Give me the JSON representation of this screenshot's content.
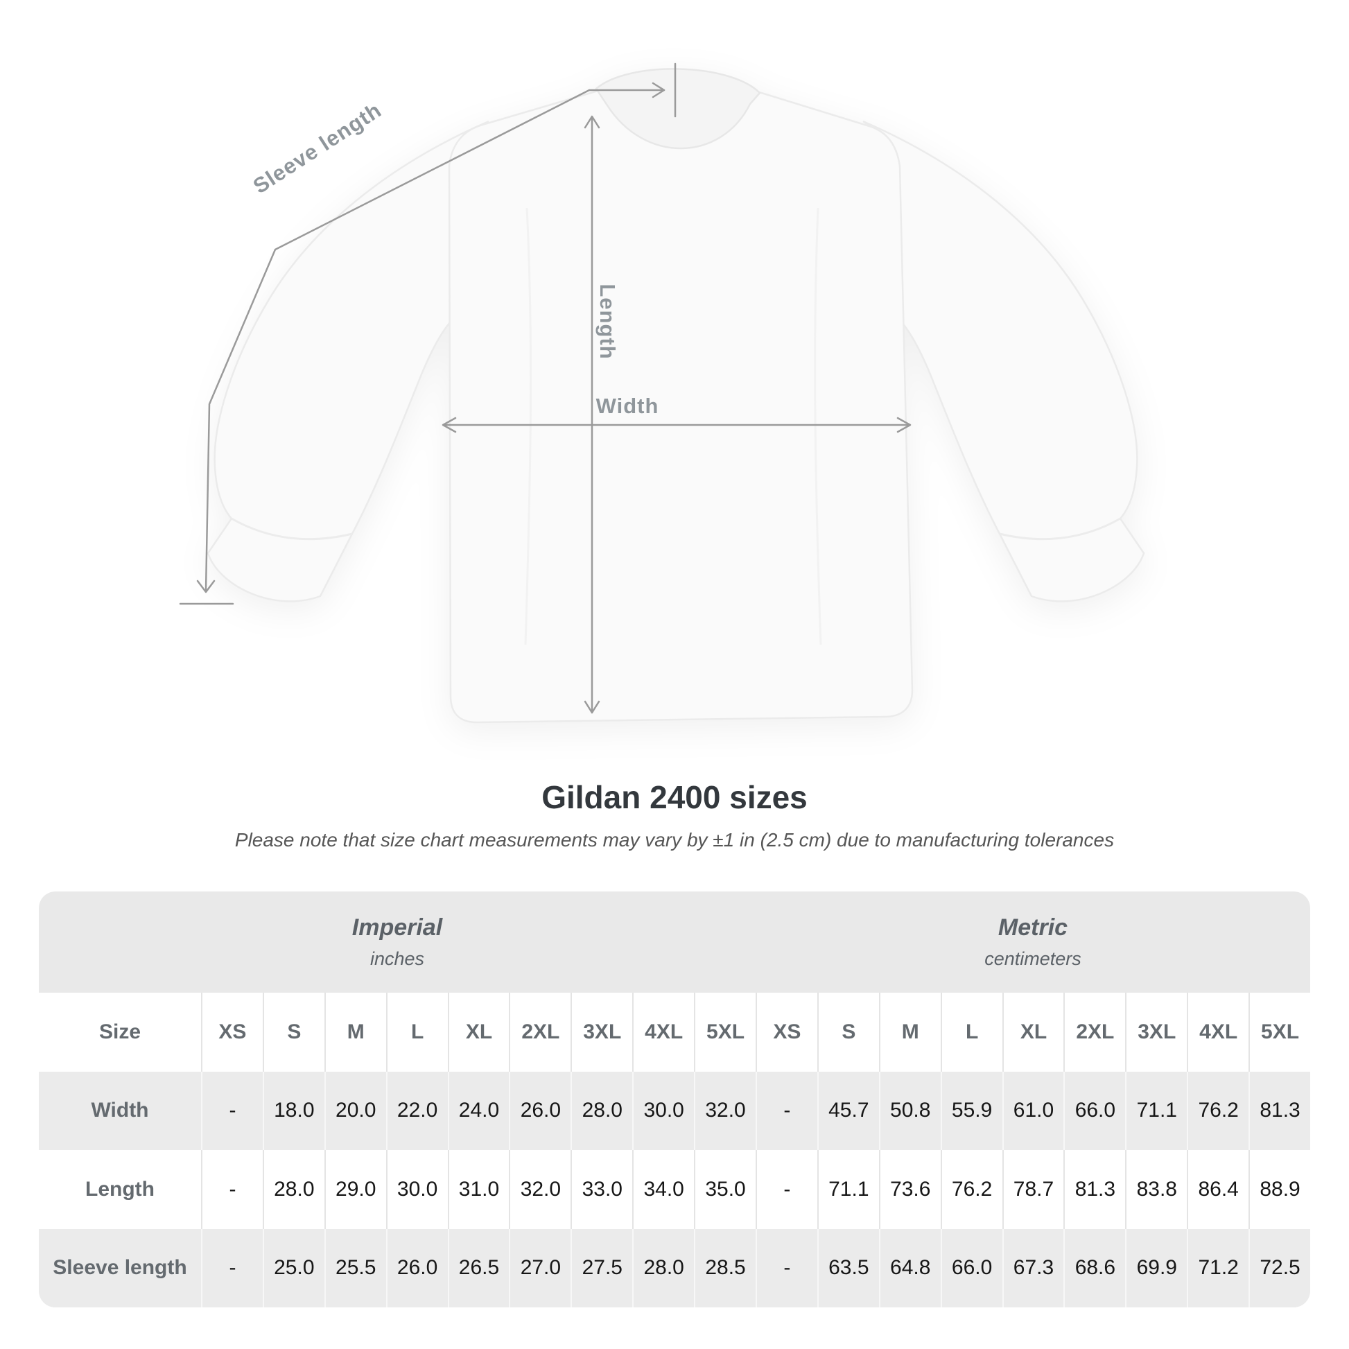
{
  "title": "Gildan 2400 sizes",
  "subtitle": "Please note that size chart measurements may vary by ±1 in (2.5 cm) due to manufacturing tolerances",
  "diagram": {
    "sleeve_length_label": "Sleeve length",
    "length_label": "Length",
    "width_label": "Width"
  },
  "size_table": {
    "size_label": "Size",
    "unit_groups": [
      {
        "name": "Imperial",
        "unit": "inches"
      },
      {
        "name": "Metric",
        "unit": "centimeters"
      }
    ],
    "sizes": [
      "XS",
      "S",
      "M",
      "L",
      "XL",
      "2XL",
      "3XL",
      "4XL",
      "5XL"
    ],
    "rows": [
      {
        "label": "Width",
        "values": [
          "-",
          "18.0",
          "20.0",
          "22.0",
          "24.0",
          "26.0",
          "28.0",
          "30.0",
          "32.0",
          "-",
          "45.7",
          "50.8",
          "55.9",
          "61.0",
          "66.0",
          "71.1",
          "76.2",
          "81.3"
        ]
      },
      {
        "label": "Length",
        "values": [
          "-",
          "28.0",
          "29.0",
          "30.0",
          "31.0",
          "32.0",
          "33.0",
          "34.0",
          "35.0",
          "-",
          "71.1",
          "73.6",
          "76.2",
          "78.7",
          "81.3",
          "83.8",
          "86.4",
          "88.9"
        ]
      },
      {
        "label": "Sleeve length",
        "values": [
          "-",
          "25.0",
          "25.5",
          "26.0",
          "26.5",
          "27.0",
          "27.5",
          "28.0",
          "28.5",
          "-",
          "63.5",
          "64.8",
          "66.0",
          "67.3",
          "68.6",
          "69.9",
          "71.2",
          "72.5"
        ]
      }
    ]
  },
  "colors": {
    "measure_line": "#9a9a9a",
    "diagram_label": "#8f969b",
    "title_text": "#33383d",
    "subtitle_text": "#565656",
    "band_background": "#e9e9e9",
    "row_stripe": "#ebebeb",
    "header_text": "#646a6f",
    "cell_text": "#161616",
    "shirt_fill": "#fafafa"
  }
}
